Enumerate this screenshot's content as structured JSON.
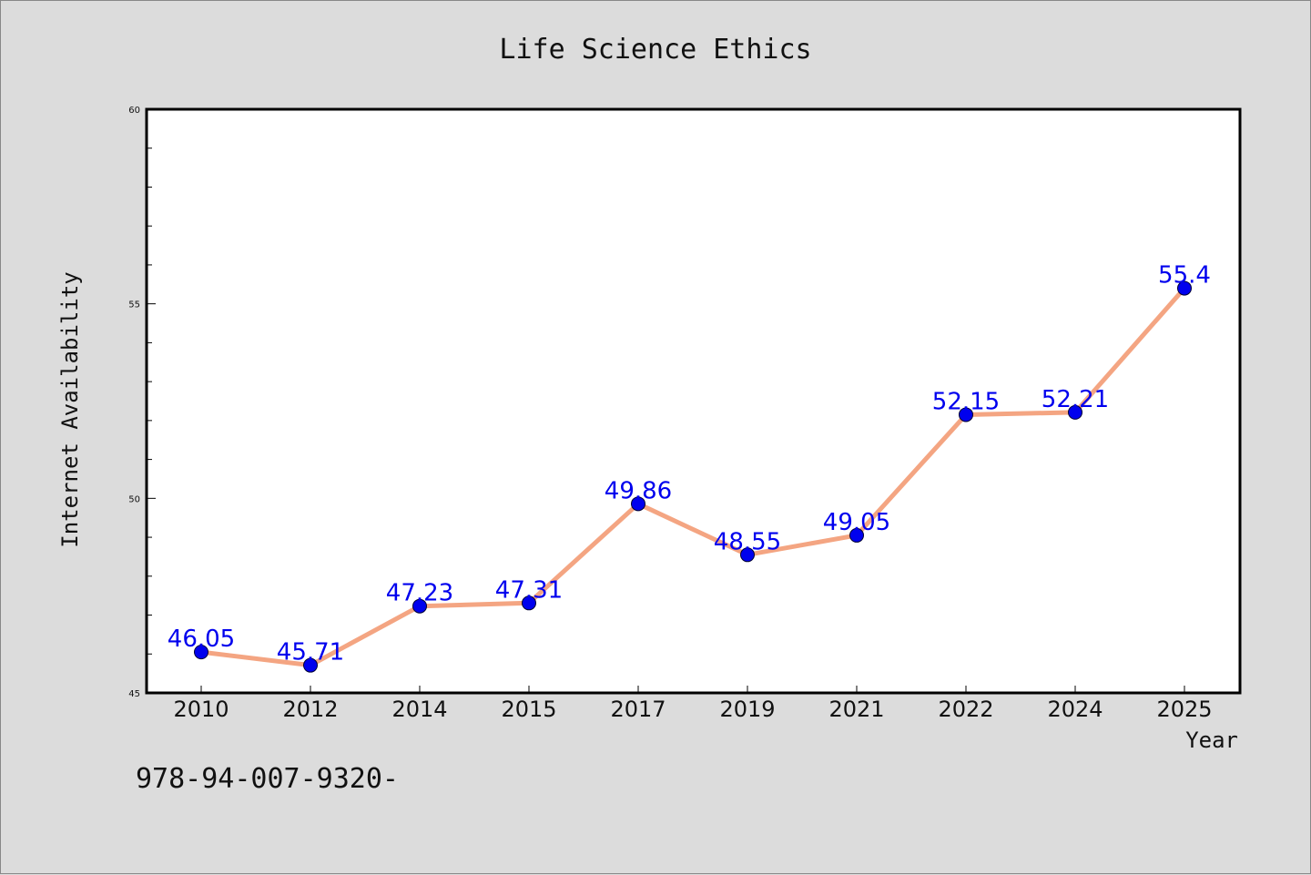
{
  "chart_data": {
    "type": "line",
    "title": "Life Science Ethics",
    "xlabel": "Year",
    "ylabel": "Internet Availability",
    "categories": [
      "2010",
      "2012",
      "2014",
      "2015",
      "2017",
      "2019",
      "2021",
      "2022",
      "2024",
      "2025"
    ],
    "values": [
      46.05,
      45.71,
      47.23,
      47.31,
      49.86,
      48.55,
      49.05,
      52.15,
      52.21,
      55.4
    ],
    "data_labels": [
      "46.05",
      "45.71",
      "47.23",
      "47.31",
      "49.86",
      "48.55",
      "49.05",
      "52.15",
      "52.21",
      "55.4"
    ],
    "ylim": [
      45,
      60
    ],
    "yticks": [
      45,
      50,
      55,
      60
    ],
    "grid": false,
    "legend": "none",
    "colors": {
      "line": "#f4a582",
      "marker": "#0000ee",
      "label": "#0000ee",
      "background": "#dcdcdc",
      "plot_background": "#ffffff"
    }
  },
  "footer": {
    "text": "978-94-007-9320-"
  }
}
